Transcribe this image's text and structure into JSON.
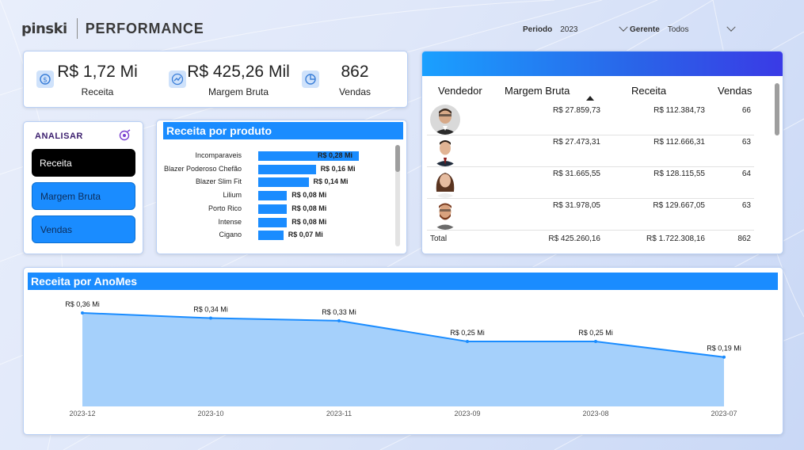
{
  "header": {
    "logo": "pinski",
    "title": "PERFORMANCE"
  },
  "filters": {
    "periodo": {
      "label": "Periodo",
      "value": "2023"
    },
    "gerente": {
      "label": "Gerente",
      "value": "Todos"
    }
  },
  "kpis": [
    {
      "value": "R$ 1,72 Mi",
      "label": "Receita",
      "icon": "money-icon"
    },
    {
      "value": "R$ 425,26 Mil",
      "label": "Margem Bruta",
      "icon": "trend-up-icon"
    },
    {
      "value": "862",
      "label": "Vendas",
      "icon": "pie-chart-icon"
    }
  ],
  "analisar": {
    "title": "ANALISAR",
    "buttons": [
      {
        "label": "Receita",
        "active": true
      },
      {
        "label": "Margem Bruta",
        "active": false
      },
      {
        "label": "Vendas",
        "active": false
      }
    ]
  },
  "produto_chart": {
    "title": "Receita por produto"
  },
  "vendedores": {
    "headers": [
      "Vendedor",
      "Margem Bruta",
      "Receita",
      "Vendas"
    ],
    "rows": [
      {
        "margem": "R$ 27.859,73",
        "receita": "R$ 112.384,73",
        "vendas": "66"
      },
      {
        "margem": "R$ 27.473,31",
        "receita": "R$ 112.666,31",
        "vendas": "63"
      },
      {
        "margem": "R$ 31.665,55",
        "receita": "R$ 128.115,55",
        "vendas": "64"
      },
      {
        "margem": "R$ 31.978,05",
        "receita": "R$ 129.667,05",
        "vendas": "63"
      }
    ],
    "total": {
      "label": "Total",
      "margem": "R$ 425.260,16",
      "receita": "R$ 1.722.308,16",
      "vendas": "862"
    }
  },
  "anomes_chart": {
    "title": "Receita por AnoMes"
  },
  "colors": {
    "accent": "#1a8cff",
    "area_fill": "#a5d0fb",
    "line": "#1a8cff",
    "active_button": "#000000"
  },
  "chart_data": [
    {
      "type": "bar",
      "orientation": "horizontal",
      "title": "Receita por produto",
      "categories": [
        "Incomparaveis",
        "Blazer Poderoso Chefão",
        "Blazer Slim Fit",
        "Lilium",
        "Porto Rico",
        "Intense",
        "Cigano"
      ],
      "values": [
        0.28,
        0.16,
        0.14,
        0.08,
        0.08,
        0.08,
        0.07
      ],
      "value_labels": [
        "R$ 0,28 Mi",
        "R$ 0,16 Mi",
        "R$ 0,14 Mi",
        "R$ 0,08 Mi",
        "R$ 0,08 Mi",
        "R$ 0,08 Mi",
        "R$ 0,07 Mi"
      ],
      "xlim": [
        0,
        0.28
      ]
    },
    {
      "type": "area",
      "title": "Receita por AnoMes",
      "categories": [
        "2023-12",
        "2023-10",
        "2023-11",
        "2023-09",
        "2023-08",
        "2023-07"
      ],
      "values": [
        0.36,
        0.34,
        0.33,
        0.25,
        0.25,
        0.19
      ],
      "value_labels": [
        "R$ 0,36 Mi",
        "R$ 0,34 Mi",
        "R$ 0,33 Mi",
        "R$ 0,25 Mi",
        "R$ 0,25 Mi",
        "R$ 0,19 Mi"
      ],
      "ylim": [
        0,
        0.36
      ]
    }
  ]
}
